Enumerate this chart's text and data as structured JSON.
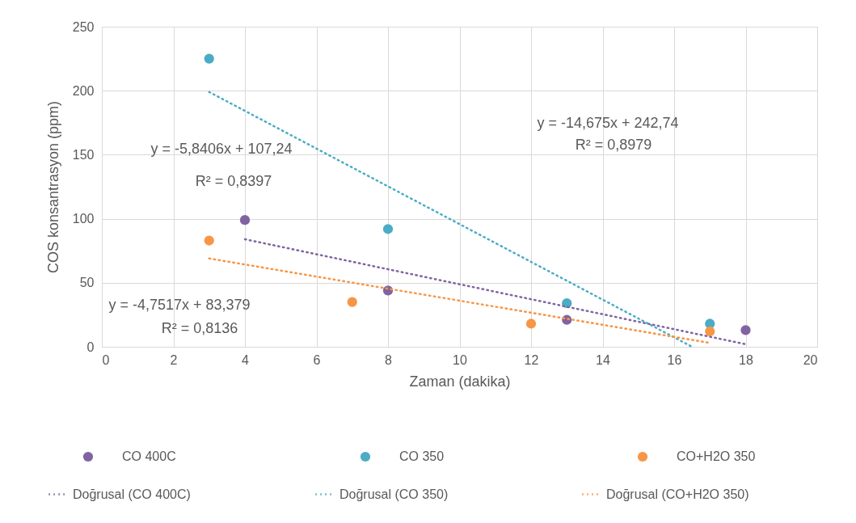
{
  "chart_data": {
    "type": "scatter",
    "xlabel": "Zaman (dakika)",
    "ylabel": "COS konsantrasyon (ppm)",
    "xlim": [
      0,
      20
    ],
    "xticks": [
      0,
      2,
      4,
      6,
      8,
      10,
      12,
      14,
      16,
      18,
      20
    ],
    "ylim": [
      0,
      250
    ],
    "yticks": [
      0,
      50,
      100,
      150,
      200,
      250
    ],
    "grid": true,
    "legend": "bottom",
    "series": [
      {
        "name": "CO 400C",
        "color": "#8064a2",
        "marker": "circle",
        "x": [
          4,
          8,
          13,
          18
        ],
        "values": [
          99,
          44,
          21,
          13
        ]
      },
      {
        "name": "CO 350",
        "color": "#4bacc6",
        "marker": "circle",
        "x": [
          3,
          8,
          13,
          17
        ],
        "values": [
          225,
          92,
          34,
          18
        ]
      },
      {
        "name": "CO+H2O 350",
        "color": "#f79646",
        "marker": "circle",
        "x": [
          3,
          7,
          12,
          17
        ],
        "values": [
          83,
          35,
          18,
          12
        ]
      },
      {
        "name": "Doğrusal (CO 400C)",
        "type": "line",
        "line_style": "dotted",
        "color": "#8064a2",
        "x": [
          4,
          18
        ],
        "values": [
          84,
          2
        ]
      },
      {
        "name": "Doğrusal (CO 350)",
        "type": "line",
        "line_style": "dotted",
        "color": "#4bacc6",
        "x": [
          3,
          16.5
        ],
        "values": [
          199,
          0
        ]
      },
      {
        "name": "Doğrusal (CO+H2O 350)",
        "type": "line",
        "line_style": "dotted",
        "color": "#f79646",
        "x": [
          3,
          17
        ],
        "values": [
          69,
          3
        ]
      }
    ],
    "annotations": [
      "y = -5,8406x + 107,24",
      "R² = 0,8397",
      "y = -14,675x + 242,74",
      "R² = 0,8979",
      "y = -4,7517x + 83,379",
      "R² = 0,8136"
    ]
  }
}
